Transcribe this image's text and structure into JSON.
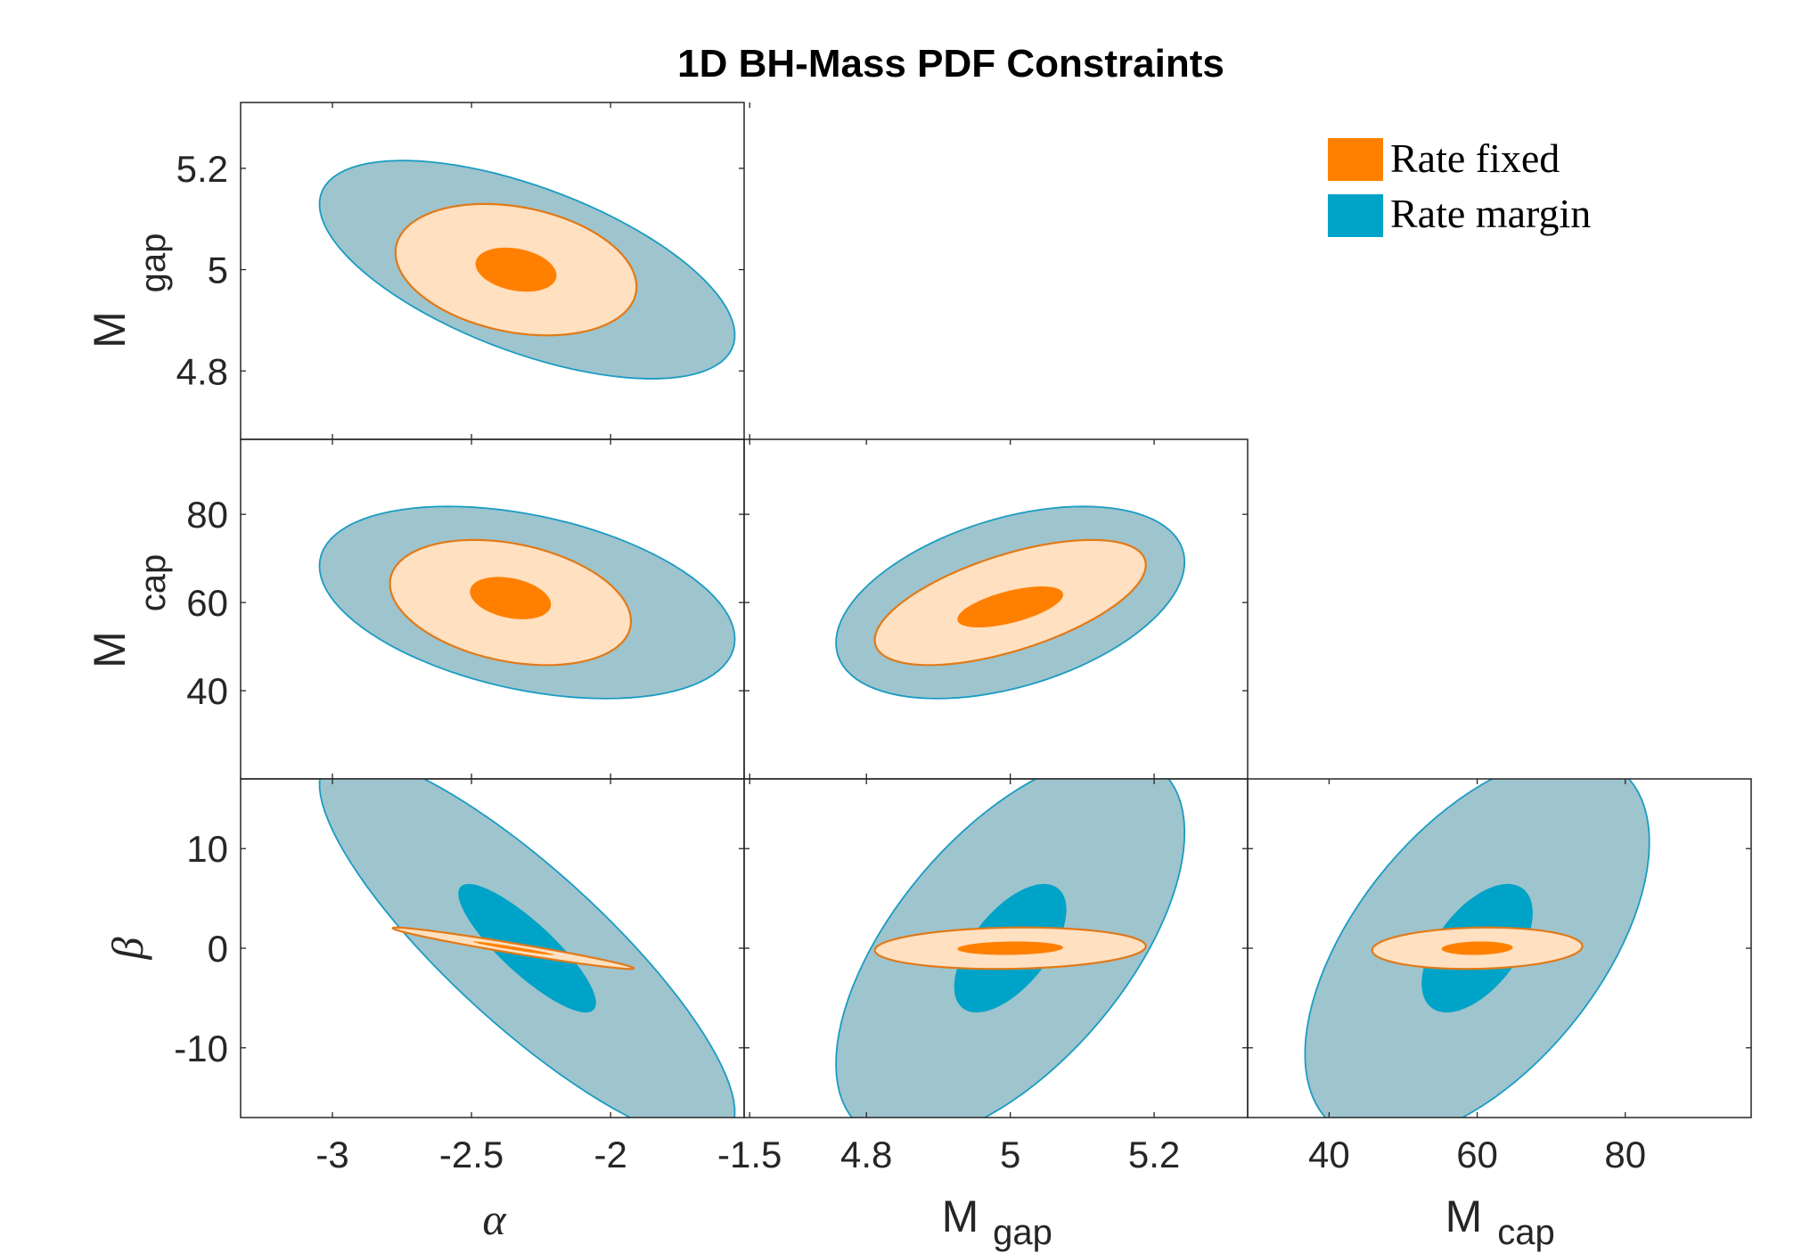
{
  "figure": {
    "title": "1D BH-Mass PDF Constraints"
  },
  "colors": {
    "fixed_fill": "#ff8000",
    "fixed_outer_fill": "#ffe0c0",
    "fixed_edge": "#e07a18",
    "margin_fill": "#00a3c8",
    "margin_outer_fill": "#9ec4ce",
    "margin_edge": "#1a9cc2"
  },
  "legend": {
    "position": "top-right",
    "entries": [
      {
        "label": "Rate fixed",
        "color": "#ff8000"
      },
      {
        "label": "Rate margin",
        "color": "#00a3c8"
      }
    ]
  },
  "axes": {
    "x": [
      {
        "name": "alpha",
        "label": "α",
        "is_greek": true,
        "sub": "",
        "ticks": [
          -3,
          -2.5,
          -2,
          -1.5
        ],
        "tick_labels": [
          "-3",
          "-2.5",
          "-2",
          "-1.5"
        ]
      },
      {
        "name": "mgap",
        "label": "M",
        "is_greek": false,
        "sub": "gap",
        "ticks": [
          4.8,
          5,
          5.2
        ],
        "tick_labels": [
          "4.8",
          "5",
          "5.2"
        ]
      },
      {
        "name": "mcap",
        "label": "M",
        "is_greek": false,
        "sub": "cap",
        "ticks": [
          40,
          60,
          80
        ],
        "tick_labels": [
          "40",
          "60",
          "80"
        ]
      }
    ],
    "y": [
      {
        "name": "mgap",
        "label": "M",
        "is_greek": false,
        "sub": "gap",
        "ticks": [
          4.8,
          5,
          5.2
        ],
        "tick_labels": [
          "4.8",
          "5",
          "5.2"
        ]
      },
      {
        "name": "mcap",
        "label": "M",
        "is_greek": false,
        "sub": "cap",
        "ticks": [
          40,
          60,
          80
        ],
        "tick_labels": [
          "40",
          "60",
          "80"
        ]
      },
      {
        "name": "beta",
        "label": "β",
        "is_greek": true,
        "sub": "",
        "ticks": [
          -10,
          0,
          10
        ],
        "tick_labels": [
          "-10",
          "0",
          "10"
        ]
      }
    ]
  },
  "chart_data": [
    {
      "type": "contour",
      "x": "alpha",
      "y": "mgap",
      "xlim": [
        -3.33,
        -1.52
      ],
      "ylim": [
        4.665,
        5.33
      ],
      "contours": [
        {
          "series": "Rate margin",
          "level": "outer",
          "cx": -2.3,
          "cy": 5.0,
          "sx": 0.305,
          "sy": 0.088,
          "rho": -0.6
        },
        {
          "series": "Rate margin",
          "level": "inner",
          "cx": -2.3,
          "cy": 5.0,
          "sx": 0.165,
          "sy": 0.042,
          "rho": -0.6
        },
        {
          "series": "Rate fixed",
          "level": "outer",
          "cx": -2.34,
          "cy": 5.0,
          "sx": 0.177,
          "sy": 0.053,
          "rho": -0.26
        },
        {
          "series": "Rate fixed",
          "level": "inner",
          "cx": -2.34,
          "cy": 5.0,
          "sx": 0.097,
          "sy": 0.029,
          "rho": -0.26
        }
      ]
    },
    {
      "type": "contour",
      "x": "alpha",
      "y": "mcap",
      "xlim": [
        -3.33,
        -1.52
      ],
      "ylim": [
        20,
        97
      ],
      "contours": [
        {
          "series": "Rate margin",
          "level": "outer",
          "cx": -2.3,
          "cy": 60,
          "sx": 0.305,
          "sy": 8.9,
          "rho": -0.38
        },
        {
          "series": "Rate margin",
          "level": "inner",
          "cx": -2.32,
          "cy": 60,
          "sx": 0.165,
          "sy": 4.8,
          "rho": -0.38
        },
        {
          "series": "Rate fixed",
          "level": "outer",
          "cx": -2.36,
          "cy": 60,
          "sx": 0.177,
          "sy": 5.8,
          "rho": -0.3
        },
        {
          "series": "Rate fixed",
          "level": "inner",
          "cx": -2.36,
          "cy": 61,
          "sx": 0.097,
          "sy": 3.2,
          "rho": -0.3
        }
      ]
    },
    {
      "type": "contour",
      "x": "alpha",
      "y": "beta",
      "xlim": [
        -3.33,
        -1.52
      ],
      "ylim": [
        -17,
        17
      ],
      "contours": [
        {
          "series": "Rate margin",
          "level": "outer",
          "cx": -2.3,
          "cy": 0,
          "sx": 0.305,
          "sy": 7.9,
          "rho": -0.85
        },
        {
          "series": "Rate margin",
          "level": "inner",
          "cx": -2.3,
          "cy": 0,
          "sx": 0.165,
          "sy": 4.3,
          "rho": -0.85
        },
        {
          "series": "Rate fixed",
          "level": "outer",
          "cx": -2.35,
          "cy": 0,
          "sx": 0.177,
          "sy": 0.85,
          "rho": -0.97
        },
        {
          "series": "Rate fixed",
          "level": "inner",
          "cx": -2.35,
          "cy": 0,
          "sx": 0.097,
          "sy": 0.45,
          "rho": -0.97
        }
      ]
    },
    {
      "type": "contour",
      "x": "mgap",
      "y": "mcap",
      "xlim": [
        4.63,
        5.33
      ],
      "ylim": [
        20,
        97
      ],
      "contours": [
        {
          "series": "Rate margin",
          "level": "outer",
          "cx": 5.0,
          "cy": 60,
          "sx": 0.099,
          "sy": 8.9,
          "rho": 0.42
        },
        {
          "series": "Rate margin",
          "level": "inner",
          "cx": 5.0,
          "cy": 60,
          "sx": 0.052,
          "sy": 4.8,
          "rho": 0.42
        },
        {
          "series": "Rate fixed",
          "level": "outer",
          "cx": 5.0,
          "cy": 60,
          "sx": 0.077,
          "sy": 5.8,
          "rho": 0.6
        },
        {
          "series": "Rate fixed",
          "level": "inner",
          "cx": 5.0,
          "cy": 59,
          "sx": 0.049,
          "sy": 3.1,
          "rho": 0.6
        }
      ]
    },
    {
      "type": "contour",
      "x": "mgap",
      "y": "beta",
      "xlim": [
        4.63,
        5.33
      ],
      "ylim": [
        -17,
        17
      ],
      "contours": [
        {
          "series": "Rate margin",
          "level": "outer",
          "cx": 5.0,
          "cy": 0,
          "sx": 0.099,
          "sy": 7.9,
          "rho": 0.6
        },
        {
          "series": "Rate margin",
          "level": "inner",
          "cx": 5.0,
          "cy": 0,
          "sx": 0.052,
          "sy": 4.3,
          "rho": 0.6
        },
        {
          "series": "Rate fixed",
          "level": "outer",
          "cx": 5.0,
          "cy": 0,
          "sx": 0.077,
          "sy": 0.85,
          "rho": 0.1
        },
        {
          "series": "Rate fixed",
          "level": "inner",
          "cx": 5.0,
          "cy": 0,
          "sx": 0.049,
          "sy": 0.45,
          "rho": 0.1
        }
      ]
    },
    {
      "type": "contour",
      "x": "mcap",
      "y": "beta",
      "xlim": [
        29,
        97
      ],
      "ylim": [
        -17,
        17
      ],
      "contours": [
        {
          "series": "Rate margin",
          "level": "outer",
          "cx": 60,
          "cy": 0,
          "sx": 9.5,
          "sy": 7.9,
          "rho": 0.55
        },
        {
          "series": "Rate margin",
          "level": "inner",
          "cx": 60,
          "cy": 0,
          "sx": 5.0,
          "sy": 4.3,
          "rho": 0.55
        },
        {
          "series": "Rate fixed",
          "level": "outer",
          "cx": 60,
          "cy": 0,
          "sx": 5.8,
          "sy": 0.85,
          "rho": 0.1
        },
        {
          "series": "Rate fixed",
          "level": "inner",
          "cx": 60,
          "cy": 0,
          "sx": 3.2,
          "sy": 0.45,
          "rho": 0.1
        }
      ]
    }
  ]
}
